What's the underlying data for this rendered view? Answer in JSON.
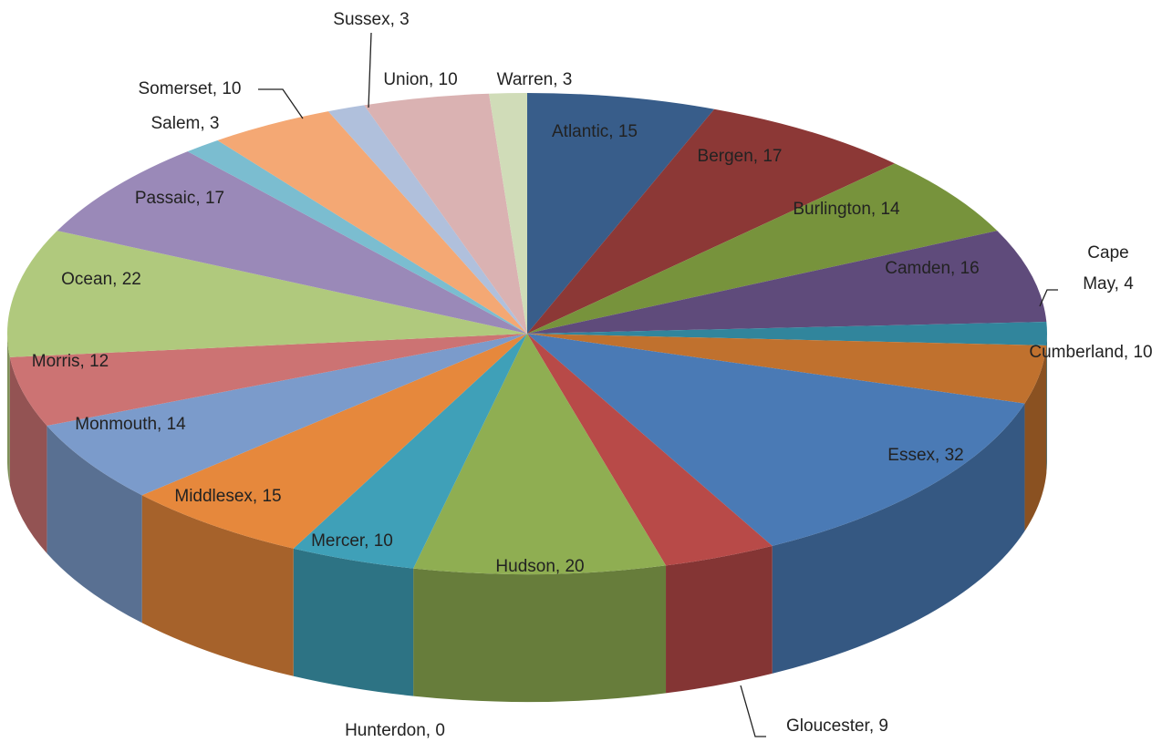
{
  "chart_data": {
    "type": "pie3d",
    "categories": [
      "Atlantic",
      "Bergen",
      "Burlington",
      "Camden",
      "Cape May",
      "Cumberland",
      "Essex",
      "Gloucester",
      "Hudson",
      "Hunterdon",
      "Mercer",
      "Middlesex",
      "Monmouth",
      "Morris",
      "Ocean",
      "Passaic",
      "Salem",
      "Somerset",
      "Sussex",
      "Union",
      "Warren"
    ],
    "values": [
      15,
      17,
      14,
      16,
      4,
      10,
      32,
      9,
      20,
      0,
      10,
      15,
      14,
      12,
      22,
      17,
      3,
      10,
      3,
      10,
      3
    ],
    "value_labels": [
      "Atlantic, 15",
      "Bergen, 17",
      "Burlington, 14",
      "Camden, 16",
      "Cape May, 4",
      "Cumberland, 10",
      "Essex, 32",
      "Gloucester, 9",
      "Hudson, 20",
      "Hunterdon, 0",
      "Mercer, 10",
      "Middlesex, 15",
      "Monmouth, 14",
      "Morris, 12",
      "Ocean, 22",
      "Passaic, 17",
      "Salem, 3",
      "Somerset, 10",
      "Sussex, 3",
      "Union, 10",
      "Warren, 3"
    ],
    "colors": [
      "#385d8a",
      "#8c3836",
      "#77933c",
      "#5f4b7b",
      "#31859c",
      "#c0712e",
      "#4a7ab5",
      "#b84a48",
      "#8fae52",
      "#7aa0d0",
      "#3fa0b8",
      "#e6883c",
      "#7b9bcb",
      "#cc7373",
      "#b0c97d",
      "#9a89b8",
      "#7bbdd0",
      "#f4a874",
      "#b0c0dc",
      "#dab2b2",
      "#d0dcb8"
    ]
  }
}
